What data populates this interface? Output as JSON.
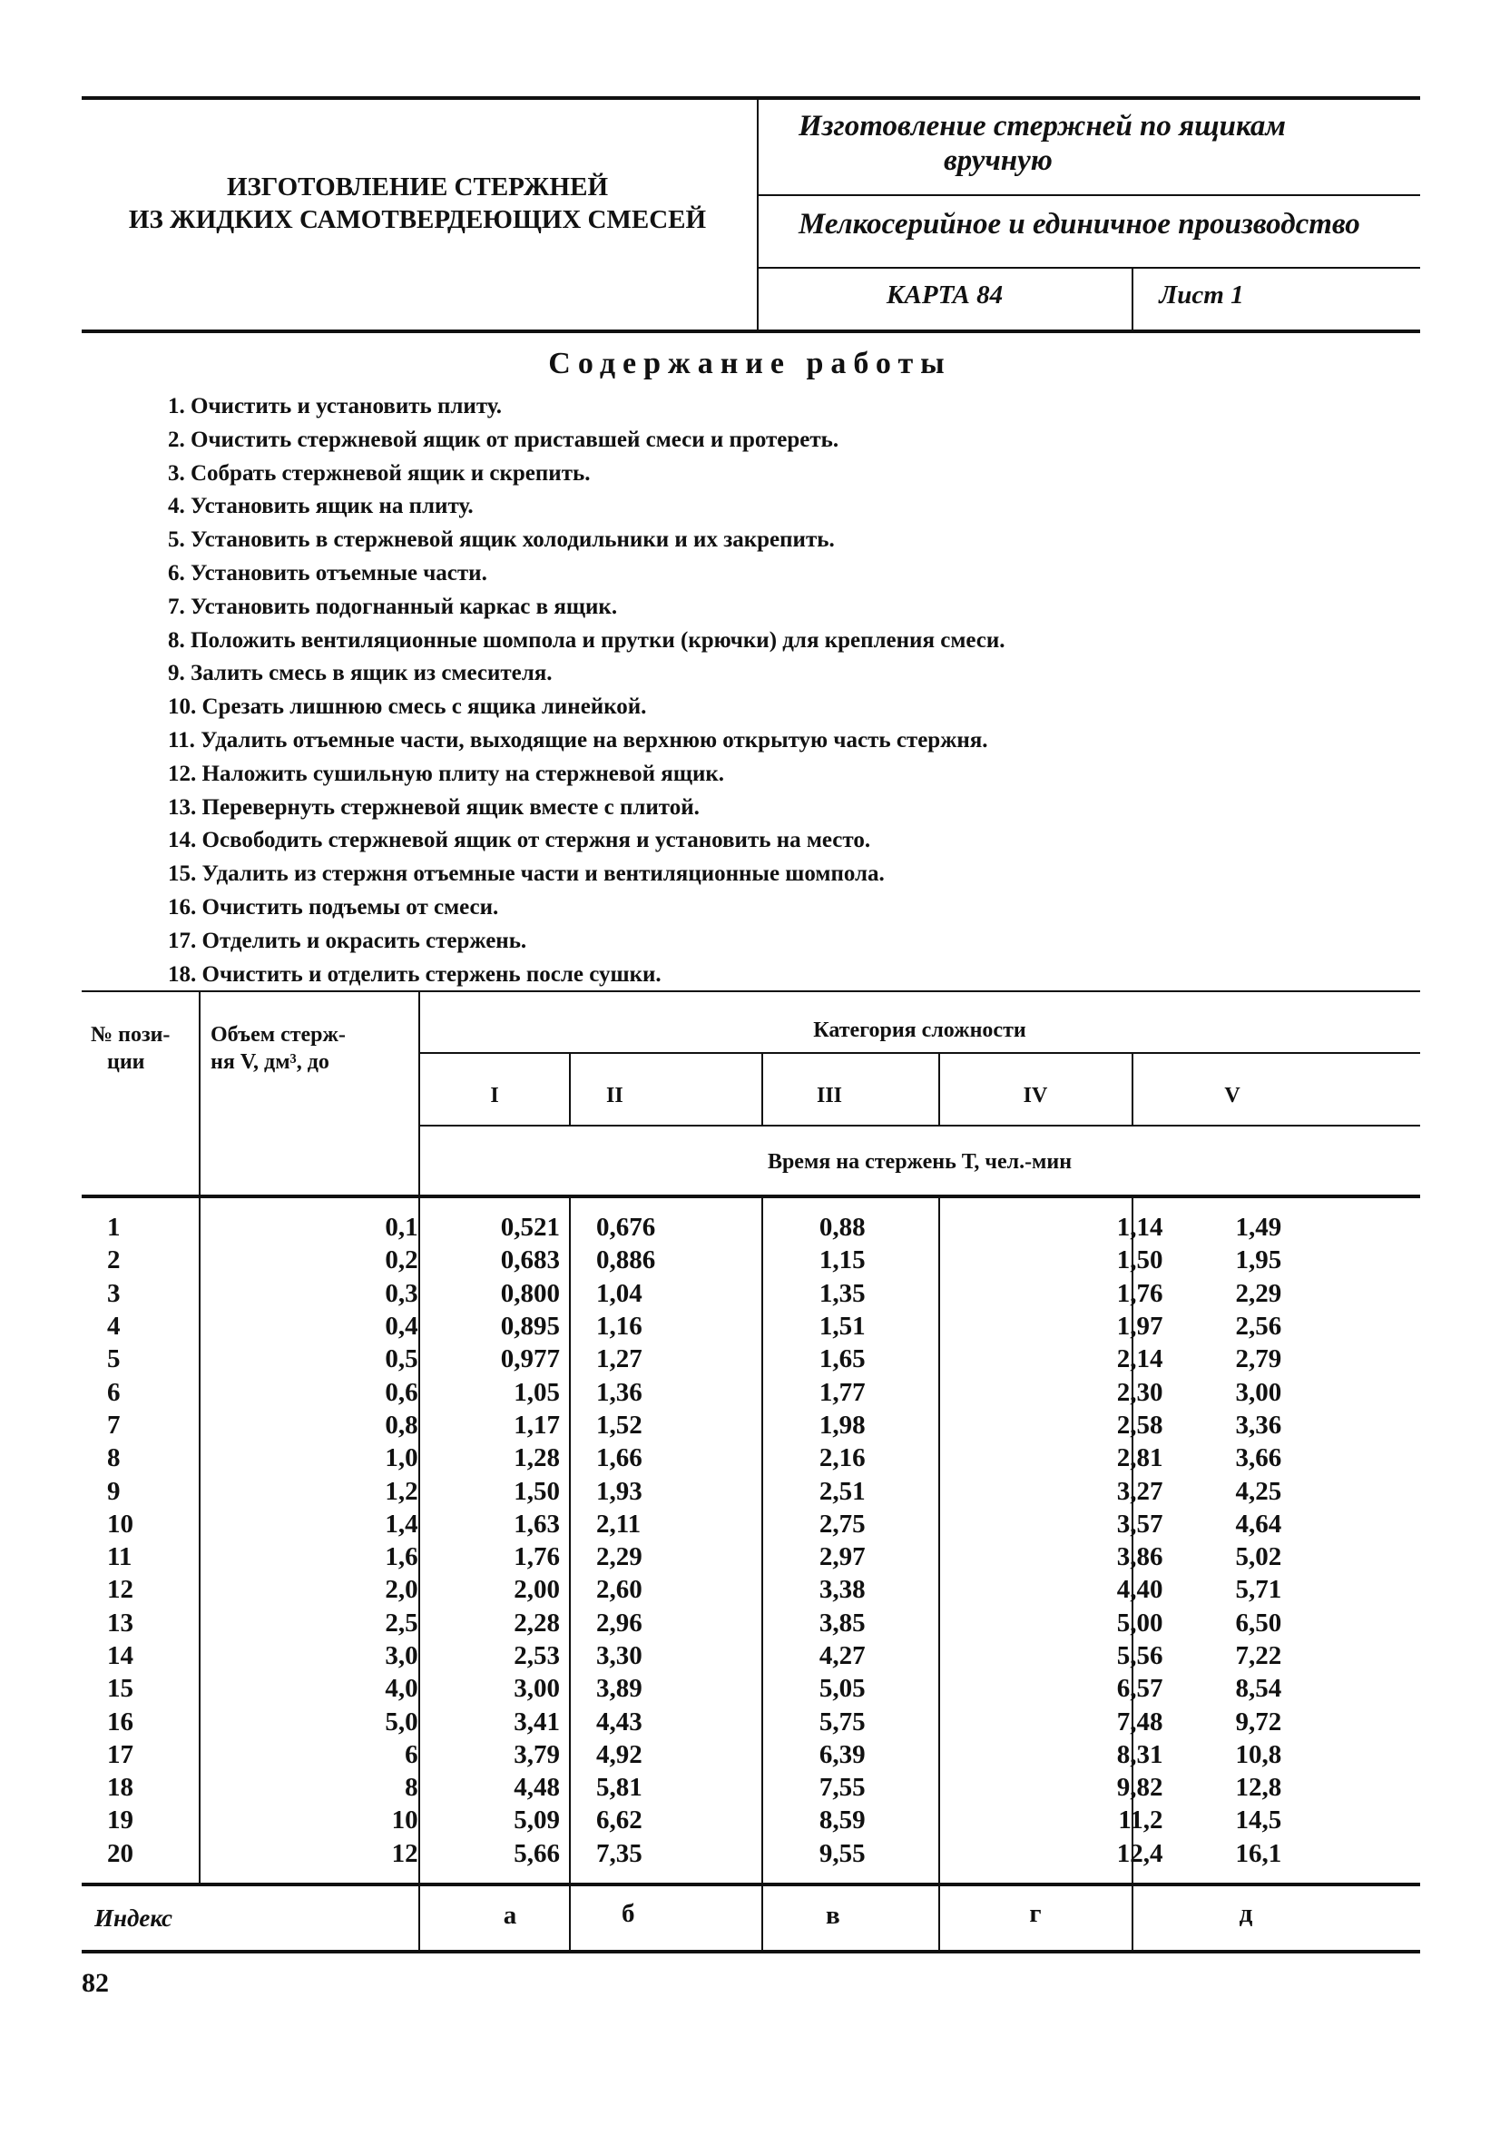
{
  "header": {
    "left_title_line1": "ИЗГОТОВЛЕНИЕ СТЕРЖНЕЙ",
    "left_title_line2": "ИЗ ЖИДКИХ САМОТВЕРДЕЮЩИХ СМЕСЕЙ",
    "operation_line1": "Изготовление стержней по ящикам",
    "operation_line2": "вручную",
    "production_type": "Мелкосерийное и единичное производство",
    "card": "КАРТА 84",
    "sheet": "Лист 1"
  },
  "work_content": {
    "title": "Содержание работы",
    "steps": [
      "1. Очистить и установить плиту.",
      "2. Очистить стержневой ящик от приставшей смеси и протереть.",
      "3. Собрать стержневой ящик и скрепить.",
      "4. Установить ящик на плиту.",
      "5. Установить в стержневой ящик холодильники и их закрепить.",
      "6. Установить отъемные части.",
      "7. Установить подогнанный каркас в ящик.",
      "8. Положить вентиляционные шомпола и прутки (крючки) для крепления смеси.",
      "9. Залить смесь в ящик из смесителя.",
      "10. Срезать лишнюю смесь с ящика линейкой.",
      "11. Удалить отъемные части, выходящие на верхнюю открытую часть стержня.",
      "12. Наложить сушильную плиту на стержневой ящик.",
      "13. Перевернуть стержневой ящик вместе с плитой.",
      "14. Освободить стержневой ящик от стержня и установить на место.",
      "15. Удалить из стержня отъемные части и вентиляционные шомпола.",
      "16. Очистить подъемы от смеси.",
      "17. Отделить и окрасить стержень.",
      "18. Очистить и отделить стержень после сушки."
    ]
  },
  "table": {
    "col_position_1": "№ пози-",
    "col_position_2": "ции",
    "col_volume_1": "Объем стерж-",
    "col_volume_2": "ня V, дм³, до",
    "complexity_header": "Категория сложности",
    "categories": [
      "I",
      "II",
      "III",
      "IV",
      "V"
    ],
    "time_header": "Время на стержень Т, чел.-мин",
    "rows": [
      [
        "1",
        "0,1",
        "0,521",
        "0,676",
        "0,88",
        "1,14",
        "1,49"
      ],
      [
        "2",
        "0,2",
        "0,683",
        "0,886",
        "1,15",
        "1,50",
        "1,95"
      ],
      [
        "3",
        "0,3",
        "0,800",
        "1,04",
        "1,35",
        "1,76",
        "2,29"
      ],
      [
        "4",
        "0,4",
        "0,895",
        "1,16",
        "1,51",
        "1,97",
        "2,56"
      ],
      [
        "5",
        "0,5",
        "0,977",
        "1,27",
        "1,65",
        "2,14",
        "2,79"
      ],
      [
        "6",
        "0,6",
        "1,05",
        "1,36",
        "1,77",
        "2,30",
        "3,00"
      ],
      [
        "7",
        "0,8",
        "1,17",
        "1,52",
        "1,98",
        "2,58",
        "3,36"
      ],
      [
        "8",
        "1,0",
        "1,28",
        "1,66",
        "2,16",
        "2,81",
        "3,66"
      ],
      [
        "9",
        "1,2",
        "1,50",
        "1,93",
        "2,51",
        "3,27",
        "4,25"
      ],
      [
        "10",
        "1,4",
        "1,63",
        "2,11",
        "2,75",
        "3,57",
        "4,64"
      ],
      [
        "11",
        "1,6",
        "1,76",
        "2,29",
        "2,97",
        "3,86",
        "5,02"
      ],
      [
        "12",
        "2,0",
        "2,00",
        "2,60",
        "3,38",
        "4,40",
        "5,71"
      ],
      [
        "13",
        "2,5",
        "2,28",
        "2,96",
        "3,85",
        "5,00",
        "6,50"
      ],
      [
        "14",
        "3,0",
        "2,53",
        "3,30",
        "4,27",
        "5,56",
        "7,22"
      ],
      [
        "15",
        "4,0",
        "3,00",
        "3,89",
        "5,05",
        "6,57",
        "8,54"
      ],
      [
        "16",
        "5,0",
        "3,41",
        "4,43",
        "5,75",
        "7,48",
        "9,72"
      ],
      [
        "17",
        "6",
        "3,79",
        "4,92",
        "6,39",
        "8,31",
        "10,8"
      ],
      [
        "18",
        "8",
        "4,48",
        "5,81",
        "7,55",
        "9,82",
        "12,8"
      ],
      [
        "19",
        "10",
        "5,09",
        "6,62",
        "8,59",
        "11,2",
        "14,5"
      ],
      [
        "20",
        "12",
        "5,66",
        "7,35",
        "9,55",
        "12,4",
        "16,1"
      ]
    ],
    "index_label": "Индекс",
    "indices": [
      "а",
      "б",
      "в",
      "г",
      "д"
    ]
  },
  "page_number": "82"
}
